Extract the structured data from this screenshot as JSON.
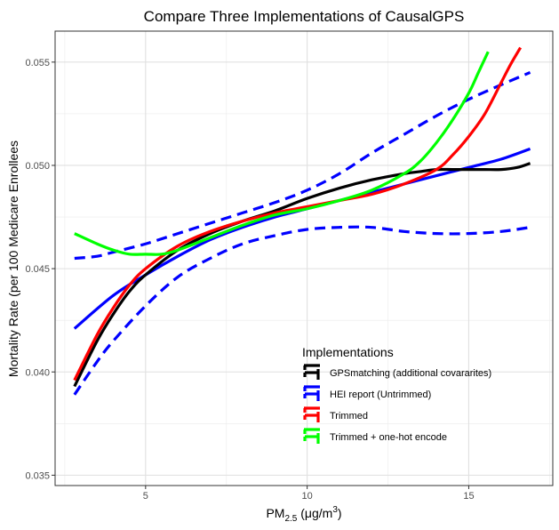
{
  "chart_data": {
    "type": "line",
    "title": "Compare Three Implementations of CausalGPS",
    "xlabel": {
      "main": "PM",
      "sub": "2.5",
      "mid": " (μg/m",
      "sup": "3",
      "end": ")"
    },
    "ylabel": "Mortality Rate (per 100 Medicare Enrollees",
    "xlim": [
      2.2,
      17.6
    ],
    "ylim": [
      0.0345,
      0.0565
    ],
    "x_ticks": [
      5,
      10,
      15
    ],
    "x_tick_labels": [
      "5",
      "10",
      "15"
    ],
    "y_ticks": [
      0.035,
      0.04,
      0.045,
      0.05,
      0.055
    ],
    "y_tick_labels": [
      "0.035",
      "0.040",
      "0.045",
      "0.050",
      "0.055"
    ],
    "grid": true,
    "legend": {
      "title": "Implementations",
      "position": "bottom-right-inside"
    },
    "series": [
      {
        "name": "GPSmatching (additional covararites)",
        "color": "#000000",
        "style": "solid",
        "x": [
          2.8,
          3.5,
          4.0,
          4.5,
          5.0,
          6.0,
          7.0,
          8.0,
          9.0,
          10.0,
          11.0,
          12.0,
          13.0,
          13.5,
          14.0,
          14.5,
          15.0,
          15.5,
          16.0,
          16.5,
          16.9
        ],
        "y": [
          0.0393,
          0.0415,
          0.0428,
          0.0439,
          0.0447,
          0.0459,
          0.0467,
          0.0473,
          0.0478,
          0.0484,
          0.0489,
          0.0493,
          0.0496,
          0.0497,
          0.0498,
          0.0498,
          0.0498,
          0.0498,
          0.0498,
          0.0499,
          0.0501
        ]
      },
      {
        "name": "HEI report (Untrimmed)",
        "color": "#0000ff",
        "style": "solid",
        "x": [
          2.8,
          4.0,
          5.0,
          6.0,
          7.0,
          8.0,
          9.0,
          10.0,
          11.0,
          12.0,
          13.0,
          14.0,
          15.0,
          16.0,
          16.9
        ],
        "y": [
          0.0421,
          0.0437,
          0.0447,
          0.0456,
          0.0464,
          0.047,
          0.0475,
          0.0479,
          0.0483,
          0.0487,
          0.0491,
          0.0495,
          0.0499,
          0.0503,
          0.0508
        ]
      },
      {
        "name": "HEI report (Untrimmed) upper bound",
        "color": "#0000ff",
        "style": "dashed",
        "x": [
          2.8,
          3.5,
          4.0,
          5.0,
          6.0,
          7.0,
          8.0,
          9.0,
          10.0,
          11.0,
          12.0,
          13.0,
          14.0,
          15.0,
          16.0,
          16.9
        ],
        "y": [
          0.0455,
          0.0456,
          0.0458,
          0.0462,
          0.0467,
          0.0472,
          0.0477,
          0.0482,
          0.0488,
          0.0496,
          0.0506,
          0.0515,
          0.0524,
          0.0532,
          0.0539,
          0.0545
        ]
      },
      {
        "name": "HEI report (Untrimmed) lower bound",
        "color": "#0000ff",
        "style": "dashed",
        "x": [
          2.8,
          3.5,
          4.0,
          5.0,
          6.0,
          7.0,
          8.0,
          9.0,
          10.0,
          11.0,
          12.0,
          13.0,
          14.0,
          15.0,
          16.0,
          16.9
        ],
        "y": [
          0.0389,
          0.0405,
          0.0415,
          0.0432,
          0.0446,
          0.0455,
          0.0462,
          0.0466,
          0.0469,
          0.047,
          0.047,
          0.0468,
          0.0467,
          0.0467,
          0.0468,
          0.047
        ]
      },
      {
        "name": "Trimmed",
        "color": "#ff0000",
        "style": "solid",
        "x": [
          2.8,
          3.5,
          4.0,
          4.5,
          5.0,
          6.0,
          7.0,
          8.0,
          9.0,
          10.0,
          11.0,
          12.0,
          13.0,
          14.0,
          14.5,
          15.0,
          15.5,
          16.0,
          16.3,
          16.6
        ],
        "y": [
          0.0396,
          0.0418,
          0.0431,
          0.0442,
          0.045,
          0.0461,
          0.0468,
          0.0473,
          0.0477,
          0.048,
          0.0483,
          0.0486,
          0.0491,
          0.0498,
          0.0505,
          0.0514,
          0.0525,
          0.054,
          0.0549,
          0.0557
        ]
      },
      {
        "name": "Trimmed + one-hot encode",
        "color": "#00ff00",
        "style": "solid",
        "x": [
          2.8,
          3.5,
          4.0,
          4.5,
          5.0,
          5.5,
          6.0,
          7.0,
          8.0,
          9.0,
          10.0,
          11.0,
          12.0,
          13.0,
          13.5,
          14.0,
          14.5,
          15.0,
          15.3,
          15.6
        ],
        "y": [
          0.0467,
          0.0462,
          0.0459,
          0.0457,
          0.0457,
          0.0457,
          0.0459,
          0.0465,
          0.0471,
          0.0476,
          0.0479,
          0.0483,
          0.0488,
          0.0496,
          0.0502,
          0.0511,
          0.0522,
          0.0535,
          0.0545,
          0.0555
        ]
      }
    ]
  }
}
